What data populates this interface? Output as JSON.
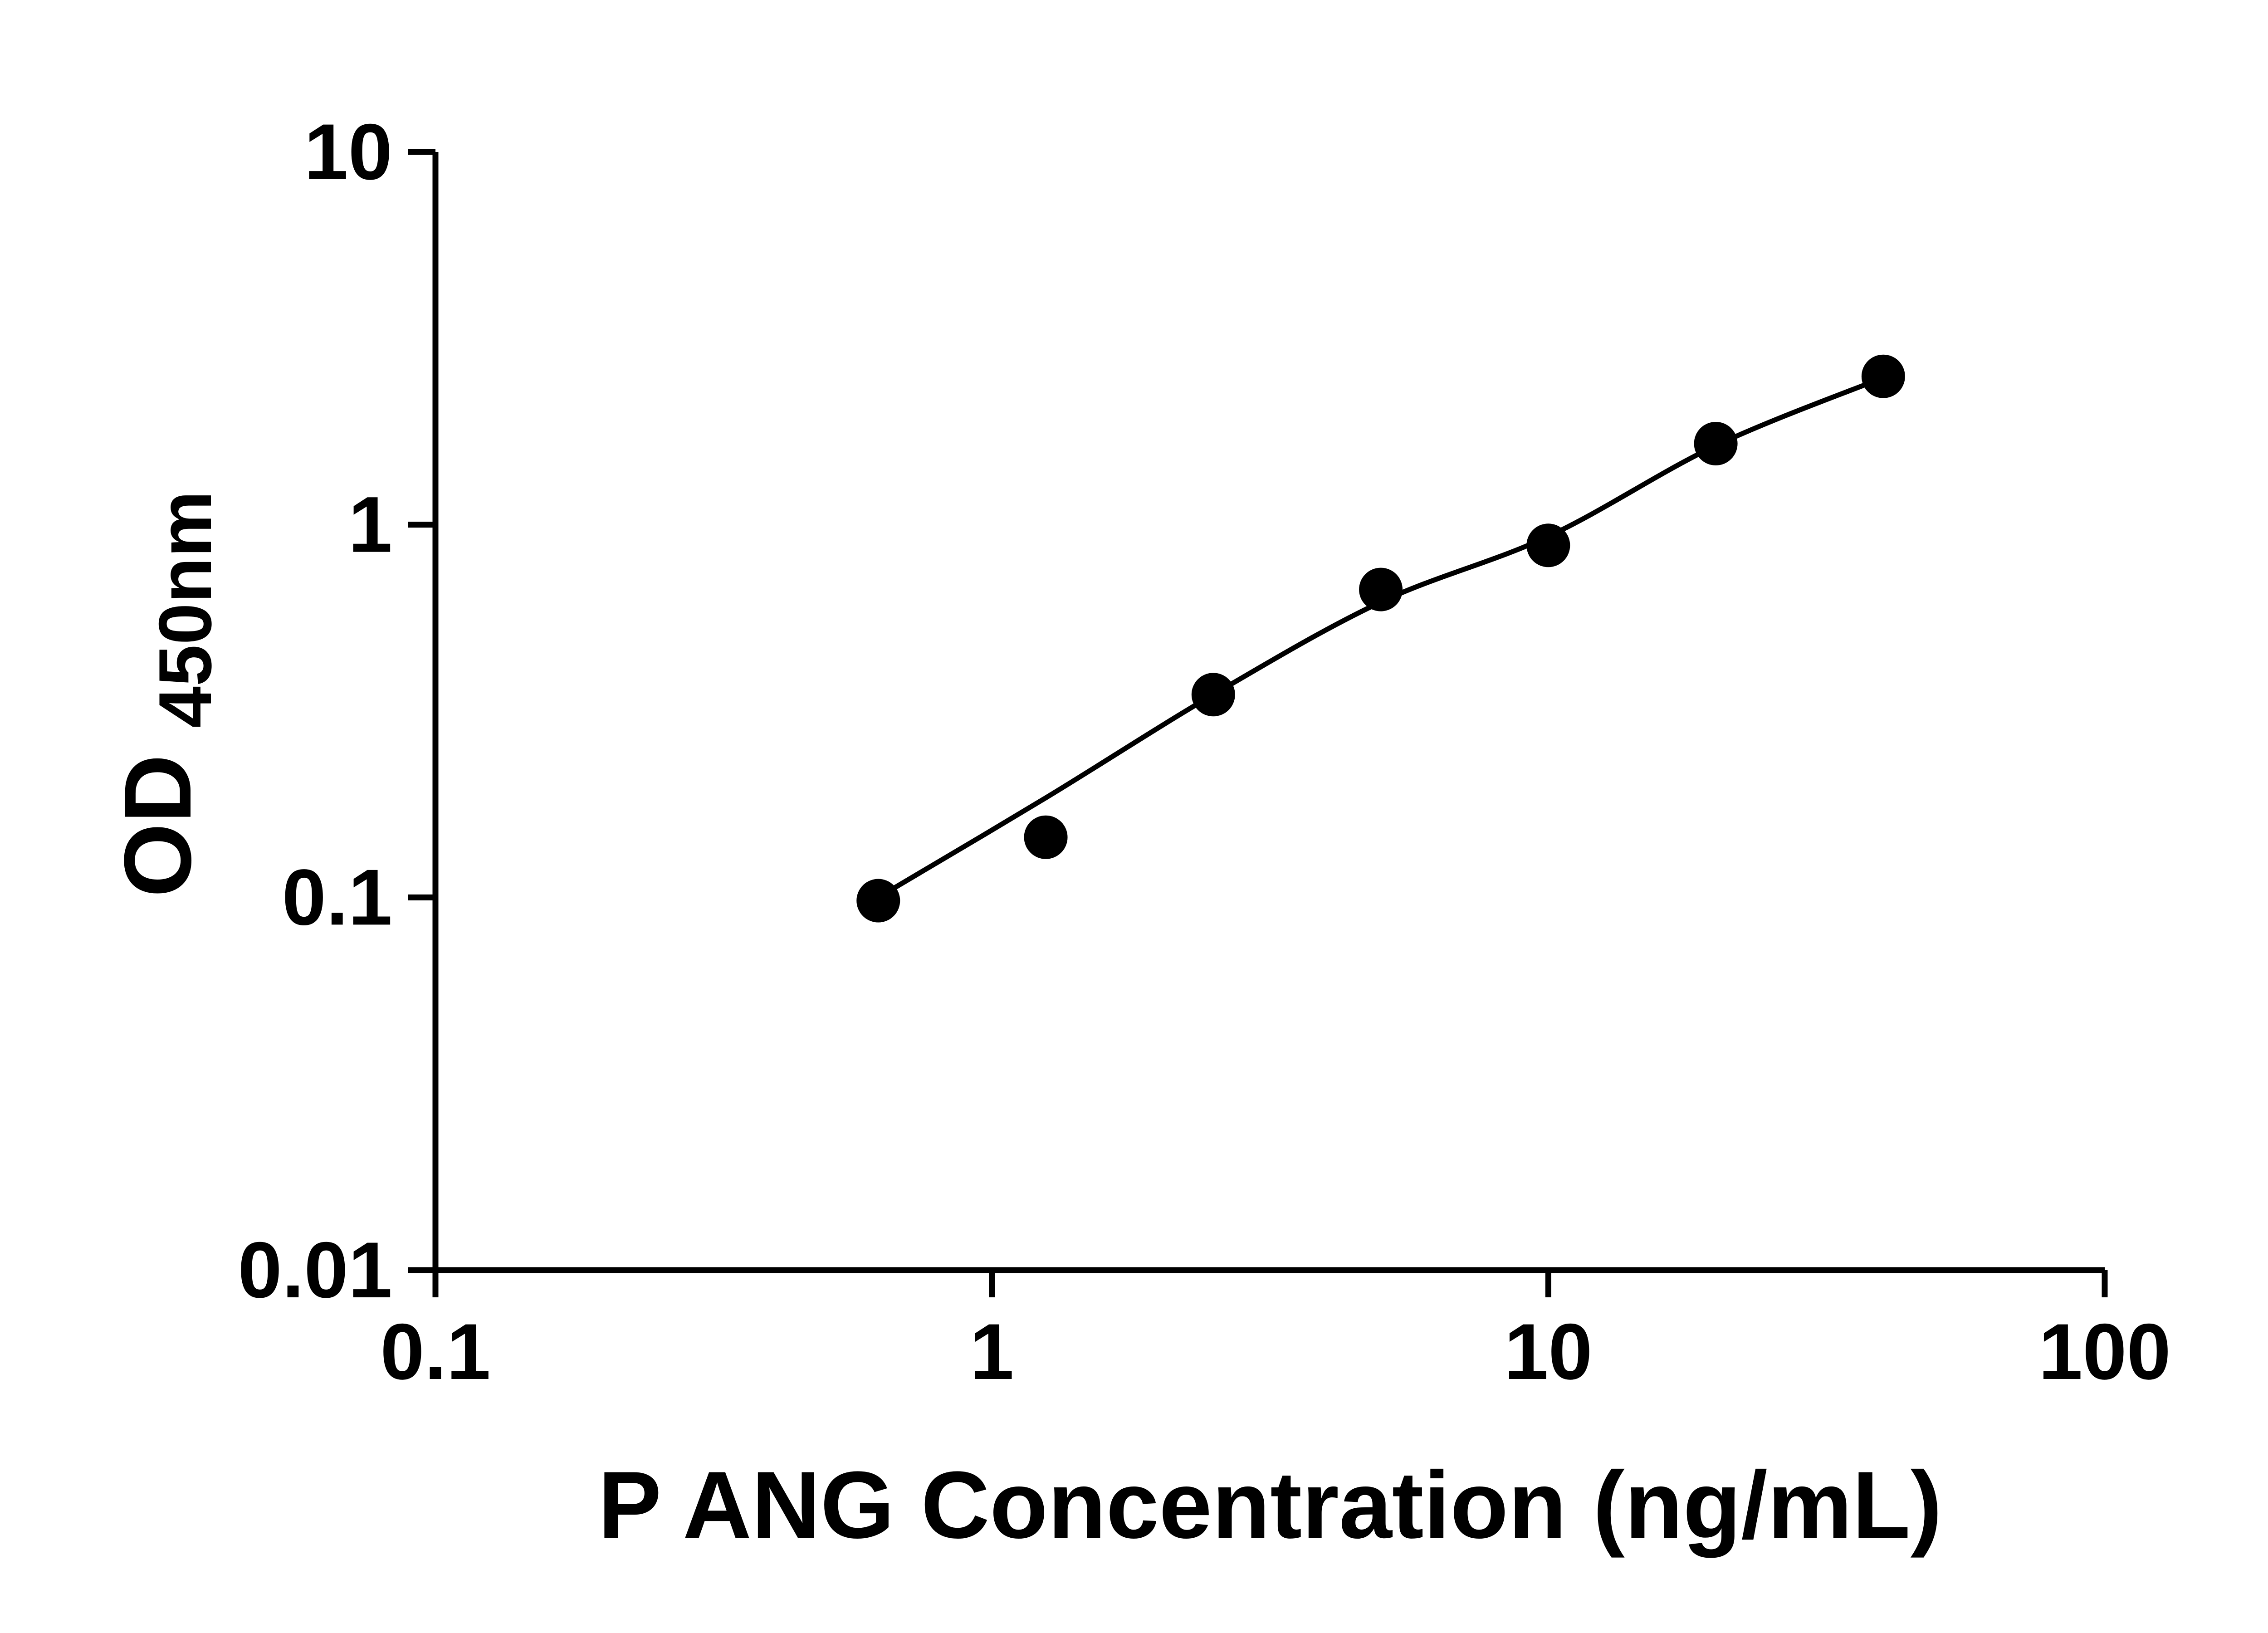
{
  "chart_data": {
    "type": "scatter",
    "title": "",
    "xlabel": "P ANG Concentration (ng/mL)",
    "ylabel_main": "OD",
    "ylabel_subscript": "450nm",
    "x_scale": "log",
    "y_scale": "log",
    "xlim": [
      0.1,
      100
    ],
    "ylim": [
      0.01,
      10
    ],
    "grid": false,
    "legend_position": "none",
    "x_ticks": {
      "values": [
        0.1,
        1,
        10,
        100
      ],
      "labels": [
        "0.1",
        "1",
        "10",
        "100"
      ]
    },
    "y_ticks": {
      "values": [
        0.01,
        0.1,
        1,
        10
      ],
      "labels": [
        "0.01",
        "0.1",
        "1",
        "10"
      ]
    },
    "series": [
      {
        "name": "standard-curve-points",
        "marker": "circle",
        "color": "#000000",
        "x": [
          0.625,
          1.25,
          2.5,
          5,
          10,
          20,
          40
        ],
        "y": [
          0.098,
          0.145,
          0.35,
          0.67,
          0.88,
          1.65,
          2.5
        ]
      }
    ],
    "fit_curve": {
      "name": "fitted-standard-curve",
      "color": "#000000",
      "x": [
        0.625,
        1.25,
        2.5,
        5,
        10,
        20,
        40
      ],
      "y": [
        0.1,
        0.185,
        0.35,
        0.62,
        0.93,
        1.63,
        2.48
      ]
    }
  },
  "colors": {
    "foreground": "#000000",
    "background": "#ffffff"
  }
}
